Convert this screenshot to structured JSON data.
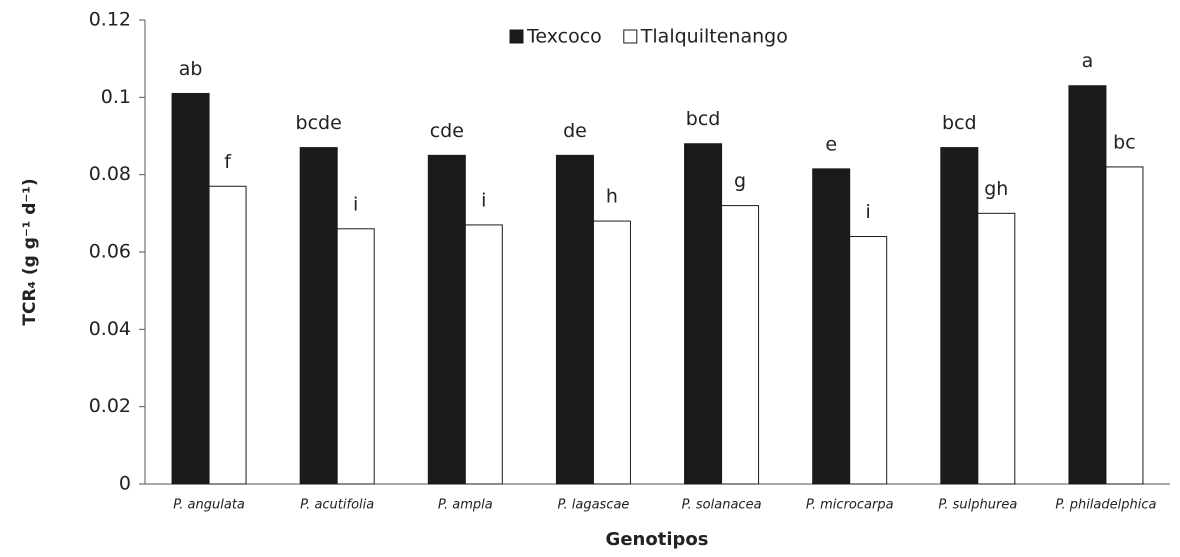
{
  "chart_data": {
    "type": "bar",
    "x_label": "Genotipos",
    "y_label": "TCR₄ (g g⁻¹ d⁻¹)",
    "categories": [
      "P. angulata",
      "P. acutifolia",
      "P. ampla",
      "P. lagascae",
      "P. solanacea",
      "P. microcarpa",
      "P. sulphurea",
      "P. philadelphica"
    ],
    "series": [
      {
        "name": "Texcoco",
        "color": "#1a1a1a",
        "values": [
          0.101,
          0.087,
          0.085,
          0.085,
          0.088,
          0.0815,
          0.087,
          0.103
        ],
        "letters": [
          "ab",
          "bcde",
          "cde",
          "de",
          "bcd",
          "e",
          "bcd",
          "a"
        ]
      },
      {
        "name": "Tlalquiltenango",
        "color": "#ffffff",
        "values": [
          0.077,
          0.066,
          0.067,
          0.068,
          0.072,
          0.064,
          0.07,
          0.082
        ],
        "letters": [
          "f",
          "i",
          "i",
          "h",
          "g",
          "i",
          "gh",
          "bc"
        ]
      }
    ],
    "ylim": [
      0,
      0.12
    ],
    "yticks": [
      0,
      0.02,
      0.04,
      0.06,
      0.08,
      0.1,
      0.12
    ],
    "grid": false
  }
}
